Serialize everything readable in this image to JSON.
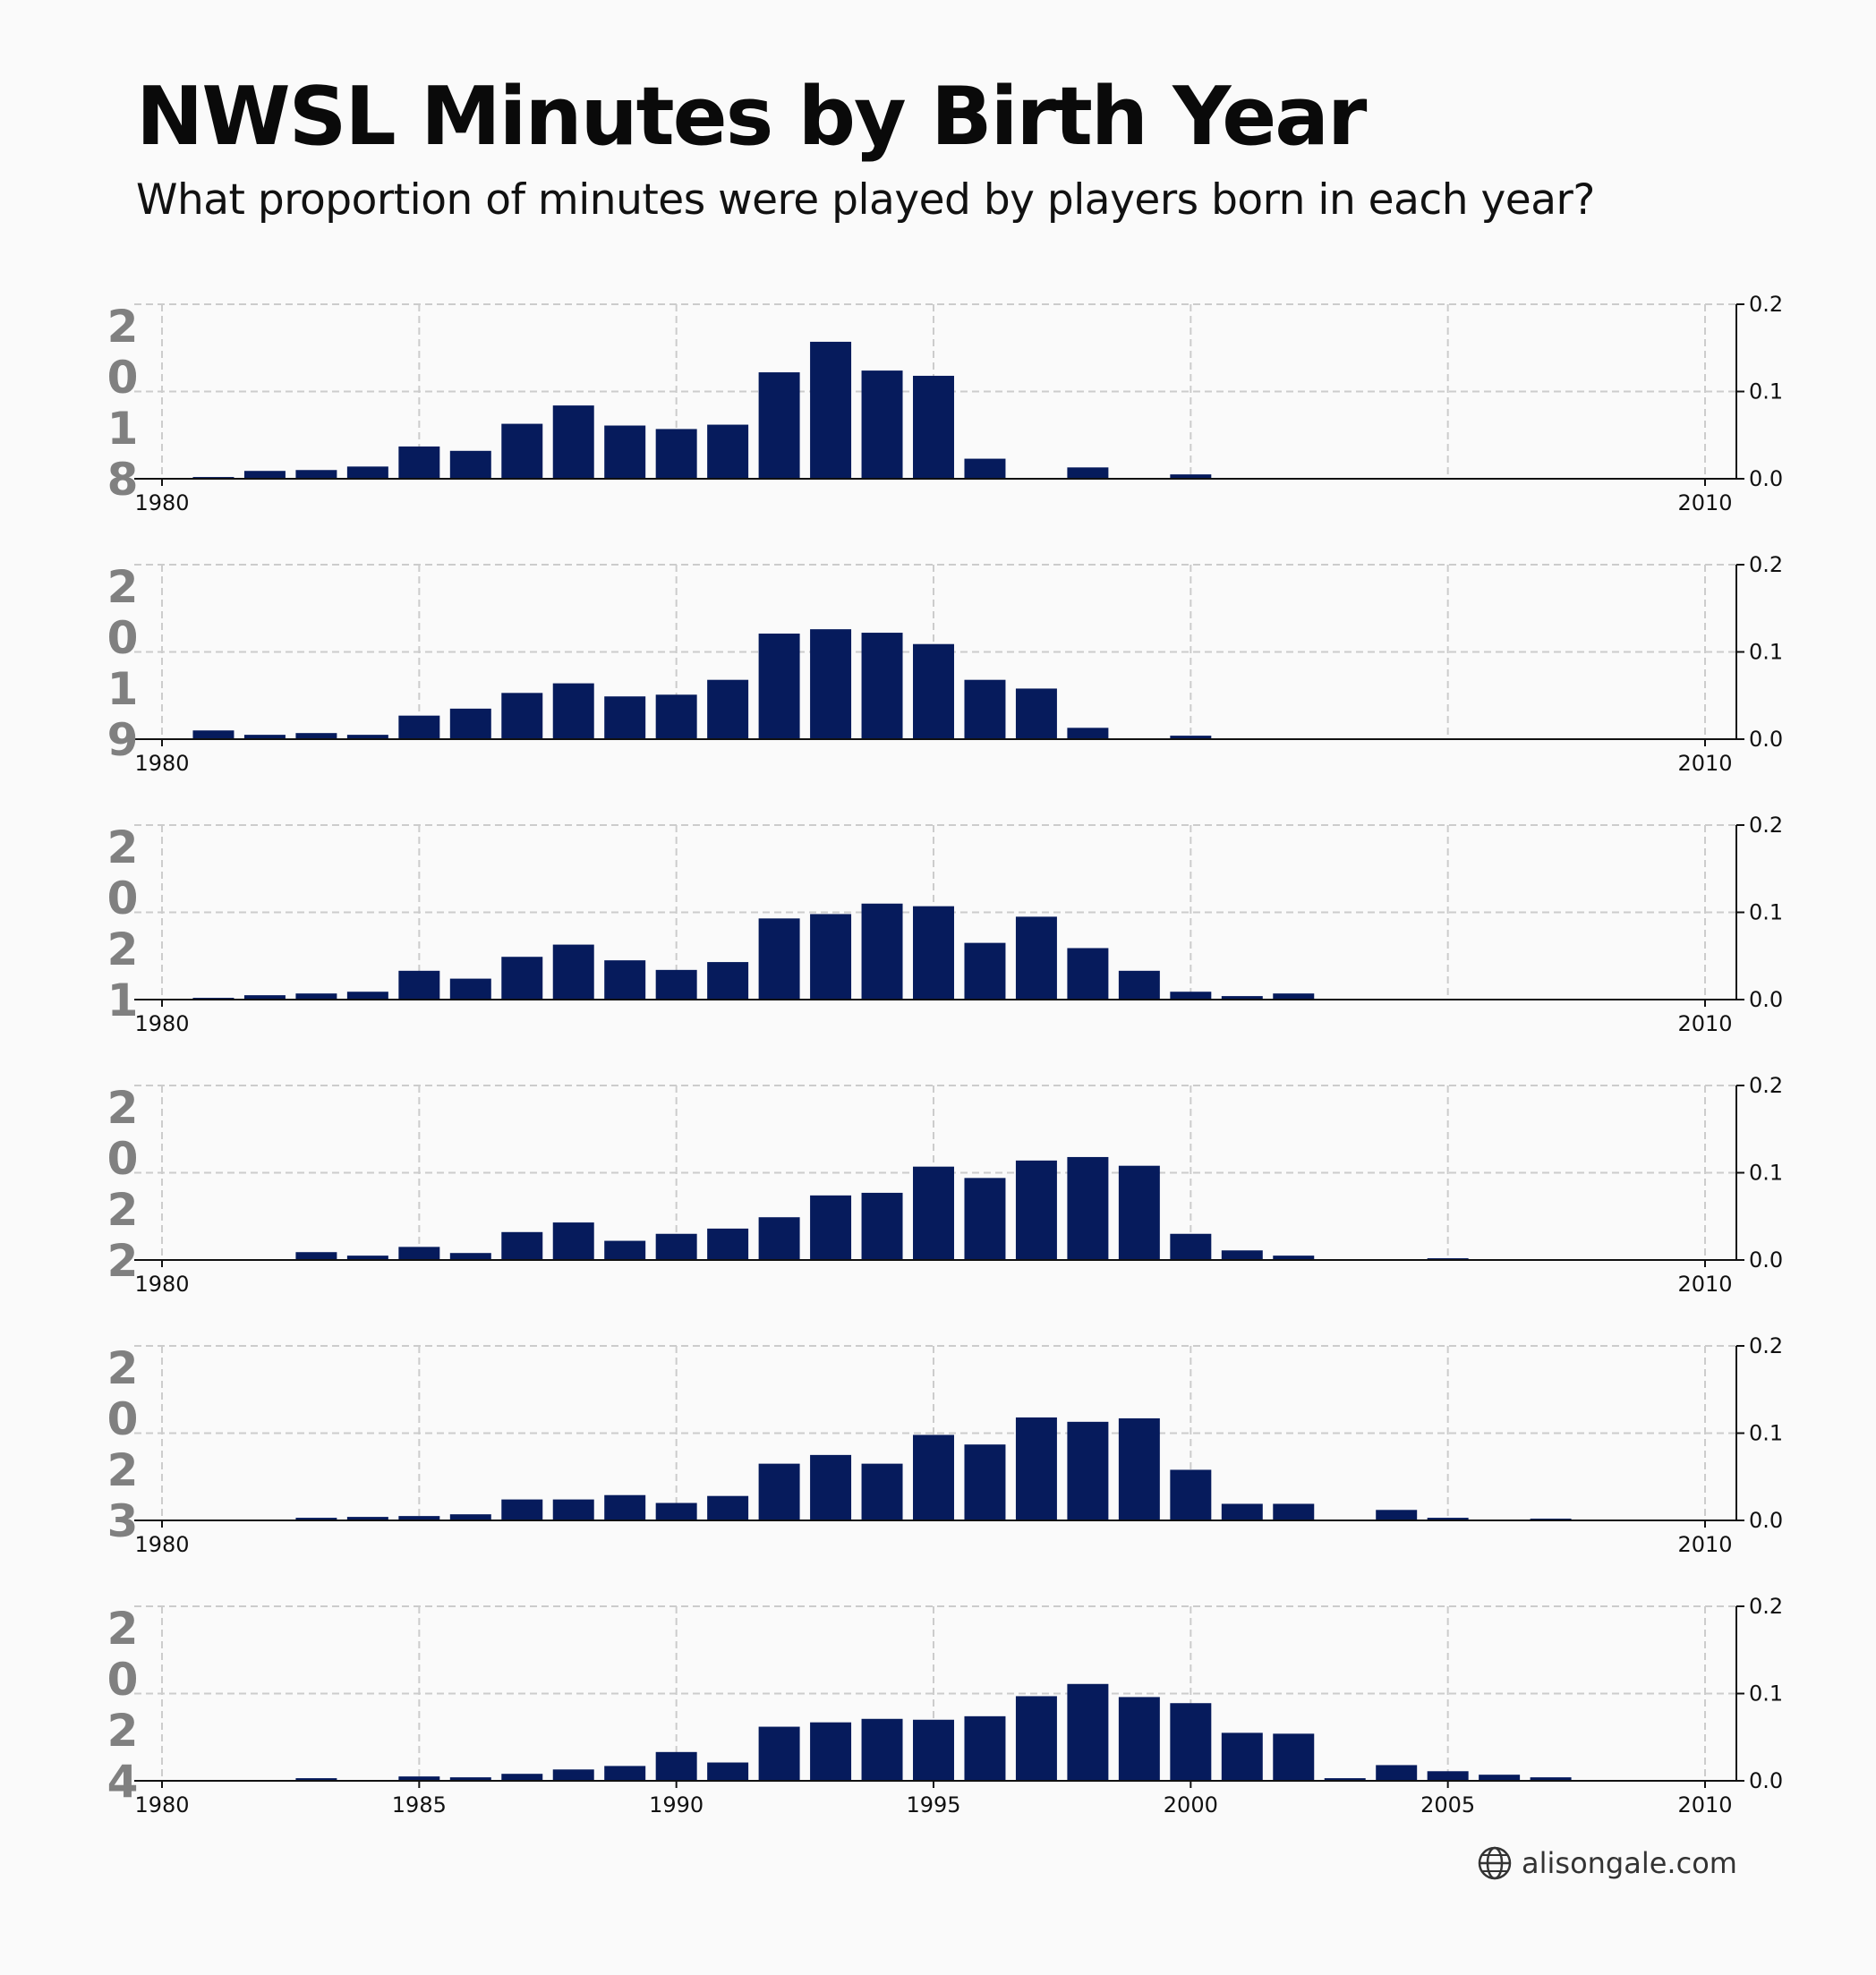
{
  "header": {
    "title": "NWSL Minutes by Birth Year",
    "subtitle": "What proportion of minutes were played by players born in each year?"
  },
  "footer": {
    "text": "alisongale.com",
    "icon": "globe-icon"
  },
  "colors": {
    "bar": "#061b5c",
    "year_label": "#808080",
    "grid": "#cccccc",
    "background": "#fafafa"
  },
  "chart_data": [
    {
      "type": "bar",
      "panel_label": "2018",
      "x": [
        1980,
        1981,
        1982,
        1983,
        1984,
        1985,
        1986,
        1987,
        1988,
        1989,
        1990,
        1991,
        1992,
        1993,
        1994,
        1995,
        1996,
        1997,
        1998,
        1999,
        2000,
        2001,
        2002,
        2003,
        2004,
        2005,
        2006,
        2007,
        2008,
        2009
      ],
      "values": [
        0,
        0.002,
        0.009,
        0.01,
        0.014,
        0.037,
        0.032,
        0.063,
        0.084,
        0.061,
        0.057,
        0.062,
        0.122,
        0.157,
        0.124,
        0.118,
        0.023,
        0,
        0.013,
        0,
        0.005,
        0,
        0,
        0,
        0,
        0,
        0,
        0,
        0,
        0
      ],
      "xlim": [
        1980,
        2010
      ],
      "xticks": [
        "1980",
        "2010"
      ],
      "ylim": [
        0,
        0.2
      ],
      "yticks": [
        "0.0",
        "0.1",
        "0.2"
      ],
      "grid": true
    },
    {
      "type": "bar",
      "panel_label": "2019",
      "x": [
        1980,
        1981,
        1982,
        1983,
        1984,
        1985,
        1986,
        1987,
        1988,
        1989,
        1990,
        1991,
        1992,
        1993,
        1994,
        1995,
        1996,
        1997,
        1998,
        1999,
        2000,
        2001,
        2002,
        2003,
        2004,
        2005,
        2006,
        2007,
        2008,
        2009
      ],
      "values": [
        0,
        0.01,
        0.005,
        0.007,
        0.005,
        0.027,
        0.035,
        0.053,
        0.064,
        0.049,
        0.051,
        0.068,
        0.121,
        0.126,
        0.122,
        0.109,
        0.068,
        0.058,
        0.013,
        0,
        0.004,
        0,
        0,
        0,
        0,
        0,
        0,
        0,
        0,
        0
      ],
      "xlim": [
        1980,
        2010
      ],
      "xticks": [
        "1980",
        "2010"
      ],
      "ylim": [
        0,
        0.2
      ],
      "yticks": [
        "0.0",
        "0.1",
        "0.2"
      ],
      "grid": true
    },
    {
      "type": "bar",
      "panel_label": "2021",
      "x": [
        1980,
        1981,
        1982,
        1983,
        1984,
        1985,
        1986,
        1987,
        1988,
        1989,
        1990,
        1991,
        1992,
        1993,
        1994,
        1995,
        1996,
        1997,
        1998,
        1999,
        2000,
        2001,
        2002,
        2003,
        2004,
        2005,
        2006,
        2007,
        2008,
        2009
      ],
      "values": [
        0,
        0.002,
        0.005,
        0.007,
        0.009,
        0.033,
        0.024,
        0.049,
        0.063,
        0.045,
        0.034,
        0.043,
        0.093,
        0.098,
        0.11,
        0.107,
        0.065,
        0.095,
        0.059,
        0.033,
        0.009,
        0.004,
        0.007,
        0,
        0,
        0,
        0,
        0,
        0,
        0
      ],
      "xlim": [
        1980,
        2010
      ],
      "xticks": [
        "1980",
        "2010"
      ],
      "ylim": [
        0,
        0.2
      ],
      "yticks": [
        "0.0",
        "0.1",
        "0.2"
      ],
      "grid": true
    },
    {
      "type": "bar",
      "panel_label": "2022",
      "x": [
        1980,
        1981,
        1982,
        1983,
        1984,
        1985,
        1986,
        1987,
        1988,
        1989,
        1990,
        1991,
        1992,
        1993,
        1994,
        1995,
        1996,
        1997,
        1998,
        1999,
        2000,
        2001,
        2002,
        2003,
        2004,
        2005,
        2006,
        2007,
        2008,
        2009
      ],
      "values": [
        0,
        0,
        0,
        0.009,
        0.005,
        0.015,
        0.008,
        0.032,
        0.043,
        0.022,
        0.03,
        0.036,
        0.049,
        0.074,
        0.077,
        0.107,
        0.094,
        0.114,
        0.118,
        0.108,
        0.03,
        0.011,
        0.005,
        0,
        0,
        0.002,
        0,
        0,
        0,
        0
      ],
      "xlim": [
        1980,
        2010
      ],
      "xticks": [
        "1980",
        "2010"
      ],
      "ylim": [
        0,
        0.2
      ],
      "yticks": [
        "0.0",
        "0.1",
        "0.2"
      ],
      "grid": true
    },
    {
      "type": "bar",
      "panel_label": "2023",
      "x": [
        1980,
        1981,
        1982,
        1983,
        1984,
        1985,
        1986,
        1987,
        1988,
        1989,
        1990,
        1991,
        1992,
        1993,
        1994,
        1995,
        1996,
        1997,
        1998,
        1999,
        2000,
        2001,
        2002,
        2003,
        2004,
        2005,
        2006,
        2007,
        2008,
        2009
      ],
      "values": [
        0,
        0,
        0,
        0.003,
        0.004,
        0.005,
        0.007,
        0.024,
        0.024,
        0.029,
        0.02,
        0.028,
        0.065,
        0.075,
        0.065,
        0.098,
        0.087,
        0.118,
        0.113,
        0.117,
        0.058,
        0.019,
        0.019,
        0,
        0.012,
        0.003,
        0,
        0.002,
        0,
        0
      ],
      "xlim": [
        1980,
        2010
      ],
      "xticks": [
        "1980",
        "2010"
      ],
      "ylim": [
        0,
        0.2
      ],
      "yticks": [
        "0.0",
        "0.1",
        "0.2"
      ],
      "grid": true
    },
    {
      "type": "bar",
      "panel_label": "2024",
      "x": [
        1980,
        1981,
        1982,
        1983,
        1984,
        1985,
        1986,
        1987,
        1988,
        1989,
        1990,
        1991,
        1992,
        1993,
        1994,
        1995,
        1996,
        1997,
        1998,
        1999,
        2000,
        2001,
        2002,
        2003,
        2004,
        2005,
        2006,
        2007,
        2008,
        2009
      ],
      "values": [
        0,
        0,
        0,
        0.003,
        0,
        0.005,
        0.004,
        0.008,
        0.013,
        0.017,
        0.033,
        0.021,
        0.062,
        0.067,
        0.071,
        0.07,
        0.074,
        0.097,
        0.111,
        0.096,
        0.089,
        0.055,
        0.054,
        0.003,
        0.018,
        0.011,
        0.007,
        0.004,
        0,
        0
      ],
      "xlim": [
        1980,
        2010
      ],
      "xticks": [
        "1980",
        "1985",
        "1990",
        "1995",
        "2000",
        "2005",
        "2010"
      ],
      "ylim": [
        0,
        0.2
      ],
      "yticks": [
        "0.0",
        "0.1",
        "0.2"
      ],
      "grid": true
    }
  ]
}
